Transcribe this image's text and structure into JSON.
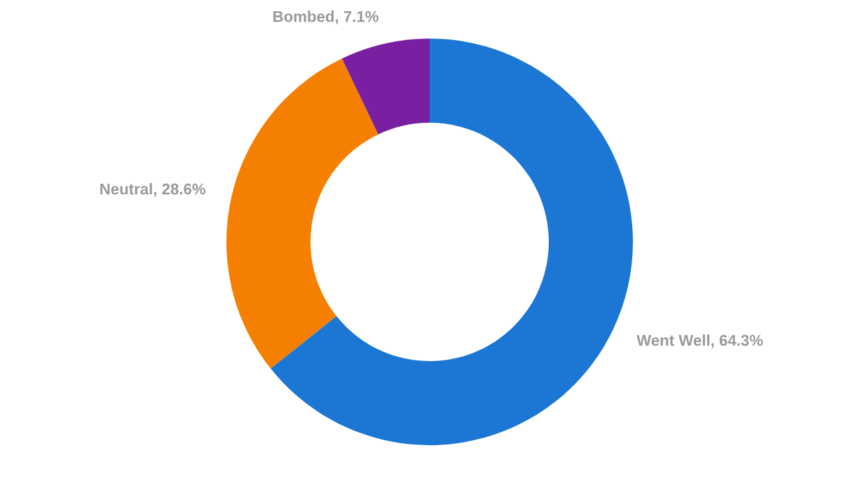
{
  "chart_data": {
    "type": "donut",
    "categories": [
      "Went Well",
      "Neutral",
      "Bombed"
    ],
    "values": [
      64.3,
      28.6,
      7.1
    ],
    "colors": [
      "#1c77d4",
      "#f57f00",
      "#7b1fa2"
    ],
    "value_labels": [
      "64.3%",
      "28.6%",
      "7.1%"
    ]
  }
}
